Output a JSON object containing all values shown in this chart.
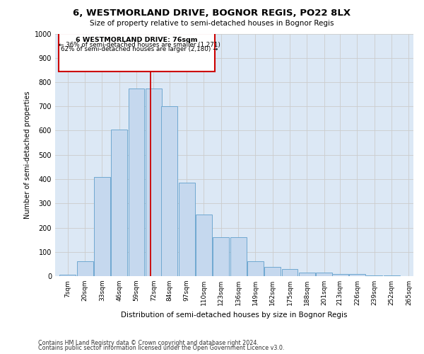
{
  "title_line1": "6, WESTMORLAND DRIVE, BOGNOR REGIS, PO22 8LX",
  "title_line2": "Size of property relative to semi-detached houses in Bognor Regis",
  "xlabel": "Distribution of semi-detached houses by size in Bognor Regis",
  "ylabel": "Number of semi-detached properties",
  "categories": [
    "7sqm",
    "20sqm",
    "33sqm",
    "46sqm",
    "59sqm",
    "72sqm",
    "84sqm",
    "97sqm",
    "110sqm",
    "123sqm",
    "136sqm",
    "149sqm",
    "162sqm",
    "175sqm",
    "188sqm",
    "201sqm",
    "213sqm",
    "226sqm",
    "239sqm",
    "252sqm",
    "265sqm"
  ],
  "values": [
    5,
    62,
    410,
    605,
    775,
    775,
    700,
    385,
    255,
    160,
    160,
    62,
    38,
    28,
    15,
    15,
    10,
    8,
    3,
    3,
    1
  ],
  "bar_color": "#c5d8ee",
  "bar_edge_color": "#6fa8d0",
  "property_label": "6 WESTMORLAND DRIVE: 76sqm",
  "pct_smaller": 36,
  "pct_larger": 62,
  "n_smaller": 1271,
  "n_larger": 2180,
  "vline_x": 76,
  "vline_color": "#cc0000",
  "annotation_box_color": "#cc0000",
  "ylim": [
    0,
    1000
  ],
  "yticks": [
    0,
    100,
    200,
    300,
    400,
    500,
    600,
    700,
    800,
    900,
    1000
  ],
  "grid_color": "#cccccc",
  "bg_color": "#dce8f5",
  "footnote1": "Contains HM Land Registry data © Crown copyright and database right 2024.",
  "footnote2": "Contains public sector information licensed under the Open Government Licence v3.0."
}
